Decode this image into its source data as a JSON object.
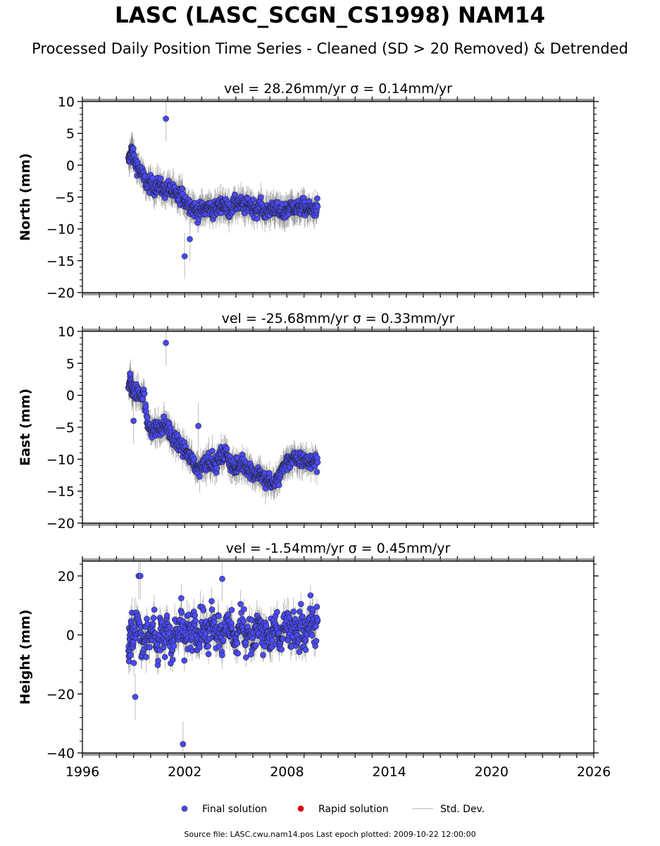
{
  "title": "LASC (LASC_SCGN_CS1998) NAM14",
  "subtitle": "Processed Daily Position Time Series - Cleaned (SD > 20 Removed) & Detrended",
  "source_note": "Source file: LASC.cwu.nam14.pos  Last epoch plotted: 2009-10-22 12:00:00",
  "colors": {
    "final": "#4a4aff",
    "rapid": "#e00000",
    "stddev": "#c8c8c8",
    "marker_edge": "#222222"
  },
  "chart_data": [
    {
      "type": "scatter",
      "title": "vel = 28.26mm/yr   σ = 0.14mm/yr",
      "ylabel": "North (mm)",
      "xlim": [
        1996,
        2026
      ],
      "ylim": [
        -20,
        10
      ],
      "yticks": [
        10,
        5,
        0,
        -5,
        -10,
        -15,
        -20
      ],
      "ytick_labels": [
        "10",
        "5",
        "0",
        "−5",
        "−10",
        "−15",
        "−20"
      ],
      "grid": false,
      "series": [
        {
          "name": "Final solution",
          "x": [
            1998.7,
            1998.8,
            1998.9,
            1999.0,
            1999.2,
            1999.4,
            1999.6,
            1999.8,
            2000.0,
            2000.2,
            2000.4,
            2000.6,
            2000.8,
            2001.0,
            2001.2,
            2001.4,
            2001.6,
            2001.8,
            2002.0,
            2002.2,
            2002.4,
            2002.6,
            2002.8,
            2003.0,
            2003.2,
            2003.4,
            2003.6,
            2003.8,
            2004.0,
            2004.2,
            2004.4,
            2004.6,
            2004.8,
            2005.0,
            2005.2,
            2005.4,
            2005.6,
            2005.8,
            2006.0,
            2006.2,
            2006.4,
            2006.6,
            2006.8,
            2007.0,
            2007.2,
            2007.4,
            2007.6,
            2007.8,
            2008.0,
            2008.2,
            2008.4,
            2008.6,
            2008.8,
            2009.0,
            2009.2,
            2009.4,
            2009.6,
            2009.8
          ],
          "y": [
            0.5,
            1.5,
            2.5,
            1.0,
            0.0,
            -1.0,
            -2.0,
            -3.0,
            -3.0,
            -3.5,
            -3.0,
            -3.5,
            -4.0,
            -3.5,
            -4.0,
            -4.5,
            -5.0,
            -4.5,
            -5.5,
            -6.0,
            -6.5,
            -7.0,
            -7.5,
            -7.0,
            -7.0,
            -6.5,
            -7.0,
            -7.0,
            -6.5,
            -6.0,
            -6.5,
            -7.0,
            -6.5,
            -6.0,
            -6.0,
            -6.5,
            -6.5,
            -6.0,
            -6.5,
            -7.0,
            -6.5,
            -7.0,
            -7.5,
            -7.0,
            -6.5,
            -7.0,
            -7.5,
            -7.5,
            -7.0,
            -6.5,
            -6.5,
            -7.0,
            -6.5,
            -6.5,
            -7.0,
            -7.0,
            -7.0,
            -6.5
          ]
        },
        {
          "name": "Rapid solution",
          "x": [],
          "y": []
        }
      ],
      "outliers": {
        "x": [
          2000.9,
          2002.0,
          2002.3
        ],
        "y": [
          7.3,
          -14.3,
          -11.6
        ]
      }
    },
    {
      "type": "scatter",
      "title": "vel = -25.68mm/yr   σ = 0.33mm/yr",
      "ylabel": "East (mm)",
      "xlim": [
        1996,
        2026
      ],
      "ylim": [
        -20,
        10
      ],
      "yticks": [
        10,
        5,
        0,
        -5,
        -10,
        -15,
        -20
      ],
      "ytick_labels": [
        "10",
        "5",
        "0",
        "−5",
        "−10",
        "−15",
        "−20"
      ],
      "grid": false,
      "series": [
        {
          "name": "Final solution",
          "x": [
            1998.7,
            1998.8,
            1998.9,
            1999.0,
            1999.2,
            1999.4,
            1999.6,
            1999.8,
            2000.0,
            2000.2,
            2000.4,
            2000.6,
            2000.8,
            2001.0,
            2001.2,
            2001.4,
            2001.6,
            2001.8,
            2002.0,
            2002.2,
            2002.4,
            2002.6,
            2002.8,
            2003.0,
            2003.2,
            2003.4,
            2003.6,
            2003.8,
            2004.0,
            2004.2,
            2004.4,
            2004.6,
            2004.8,
            2005.0,
            2005.2,
            2005.4,
            2005.6,
            2005.8,
            2006.0,
            2006.2,
            2006.4,
            2006.6,
            2006.8,
            2007.0,
            2007.2,
            2007.4,
            2007.6,
            2007.8,
            2008.0,
            2008.2,
            2008.4,
            2008.6,
            2008.8,
            2009.0,
            2009.2,
            2009.4,
            2009.6,
            2009.8
          ],
          "y": [
            1.5,
            2.5,
            1.0,
            0.5,
            0.5,
            0.0,
            0.5,
            -4.5,
            -5.0,
            -5.5,
            -5.0,
            -5.5,
            -4.5,
            -5.0,
            -6.5,
            -7.0,
            -7.5,
            -8.0,
            -8.5,
            -9.5,
            -10.0,
            -11.0,
            -11.5,
            -11.0,
            -10.5,
            -10.0,
            -10.5,
            -11.0,
            -10.0,
            -9.5,
            -9.0,
            -10.0,
            -11.0,
            -11.5,
            -11.0,
            -10.5,
            -11.0,
            -11.5,
            -12.0,
            -12.5,
            -12.0,
            -13.0,
            -13.5,
            -13.5,
            -14.0,
            -13.0,
            -12.5,
            -11.0,
            -10.5,
            -10.0,
            -10.0,
            -10.5,
            -10.0,
            -10.0,
            -10.5,
            -10.5,
            -10.0,
            -10.5
          ]
        },
        {
          "name": "Rapid solution",
          "x": [],
          "y": []
        }
      ],
      "outliers": {
        "x": [
          2000.9,
          1999.0,
          2002.8
        ],
        "y": [
          8.2,
          -4.0,
          -4.8
        ]
      }
    },
    {
      "type": "scatter",
      "title": "vel = -1.54mm/yr   σ = 0.45mm/yr",
      "ylabel": "Height (mm)",
      "xlim": [
        1996,
        2026
      ],
      "ylim": [
        -40,
        25
      ],
      "yticks": [
        20,
        0,
        -20,
        -40
      ],
      "ytick_labels": [
        "20",
        "0",
        "−20",
        "−40"
      ],
      "xticks": [
        1996,
        2002,
        2008,
        2014,
        2020,
        2026
      ],
      "xtick_labels": [
        "1996",
        "2002",
        "2008",
        "2014",
        "2020",
        "2026"
      ],
      "grid": false,
      "series": [
        {
          "name": "Final solution",
          "x": [
            1998.7,
            1998.8,
            1998.9,
            1999.0,
            1999.2,
            1999.4,
            1999.6,
            1999.8,
            2000.0,
            2000.2,
            2000.4,
            2000.6,
            2000.8,
            2001.0,
            2001.2,
            2001.4,
            2001.6,
            2001.8,
            2002.0,
            2002.2,
            2002.4,
            2002.6,
            2002.8,
            2003.0,
            2003.2,
            2003.4,
            2003.6,
            2003.8,
            2004.0,
            2004.2,
            2004.4,
            2004.6,
            2004.8,
            2005.0,
            2005.2,
            2005.4,
            2005.6,
            2005.8,
            2006.0,
            2006.2,
            2006.4,
            2006.6,
            2006.8,
            2007.0,
            2007.2,
            2007.4,
            2007.6,
            2007.8,
            2008.0,
            2008.2,
            2008.4,
            2008.6,
            2008.8,
            2009.0,
            2009.2,
            2009.4,
            2009.6,
            2009.8
          ],
          "y": [
            -8,
            -3,
            2,
            -5,
            6,
            0,
            -4,
            3,
            -2,
            5,
            -6,
            1,
            -3,
            4,
            -5,
            2,
            -1,
            6,
            -4,
            3,
            0,
            7,
            -2,
            5,
            2,
            -3,
            8,
            1,
            4,
            -2,
            6,
            0,
            3,
            -4,
            2,
            5,
            -1,
            3,
            -3,
            1,
            4,
            -2,
            2,
            -4,
            0,
            3,
            -3,
            1,
            4,
            -1,
            2,
            -2,
            5,
            0,
            3,
            6,
            2,
            5
          ]
        },
        {
          "name": "Rapid solution",
          "x": [],
          "y": []
        }
      ],
      "outliers": {
        "x": [
          1999.3,
          1999.4,
          2001.9,
          2004.2,
          1999.1
        ],
        "y": [
          20,
          20,
          -37,
          19,
          -21
        ]
      }
    }
  ],
  "legend": {
    "placement": "bottom-center",
    "items": [
      {
        "label": "Final solution",
        "kind": "dot"
      },
      {
        "label": "Rapid solution",
        "kind": "dot"
      },
      {
        "label": "Std. Dev.",
        "kind": "line"
      }
    ]
  }
}
